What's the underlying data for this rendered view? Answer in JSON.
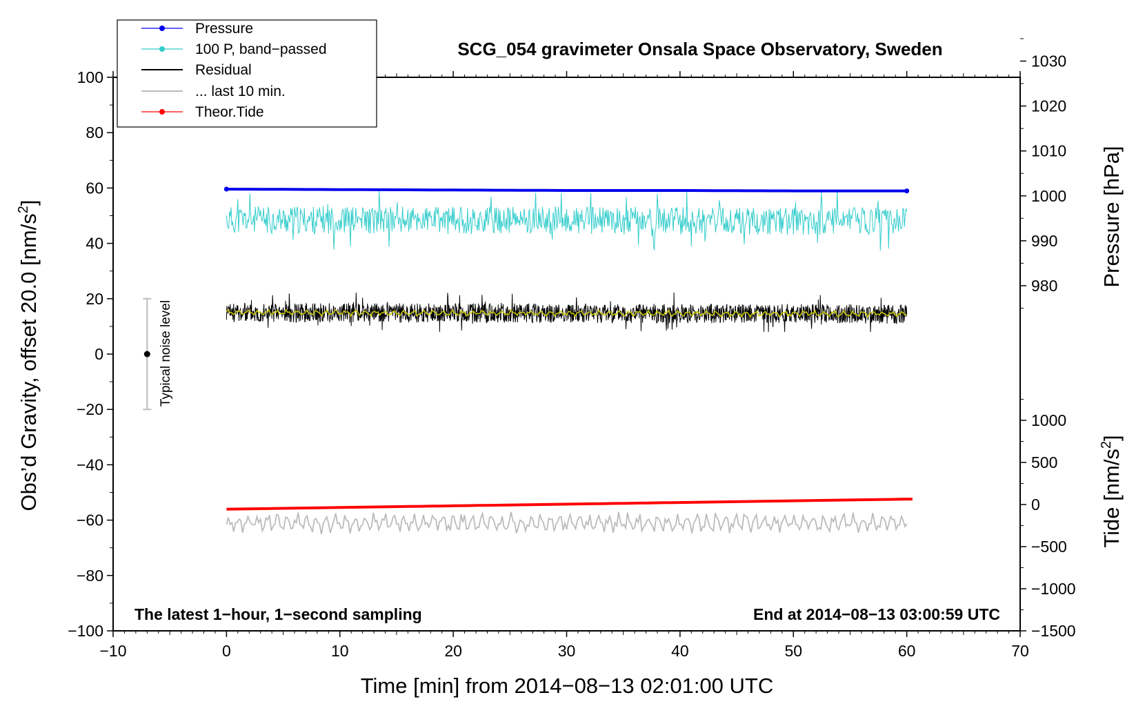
{
  "chart_data": {
    "type": "line",
    "title": "SCG_054 gravimeter Onsala Space Observatory, Sweden",
    "xlabel": "Time [min] from 2014−08−13 02:01:00 UTC",
    "ylabel": "Obs’d Gravity, offset 20.0 [nm/s²]",
    "ylabel_main": "Obs’d Gravity, offset 20.0 [nm/s",
    "ylabel_sup": "2",
    "ylabel_end": "]",
    "y2label": "Pressure [hPa]",
    "y3label": "Tide [nm/s²]",
    "y3label_main": "Tide [nm/s",
    "y3label_sup": "2",
    "y3label_end": "]",
    "xlim": [
      -10,
      70
    ],
    "ylim": [
      -100,
      100
    ],
    "pressure_lim": [
      970,
      1035
    ],
    "tide_lim": [
      -1500,
      1500
    ],
    "x_ticks": [
      -10,
      0,
      10,
      20,
      30,
      40,
      50,
      60,
      70
    ],
    "x_tick_labels": [
      "−10",
      "0",
      "10",
      "20",
      "30",
      "40",
      "50",
      "60",
      "70"
    ],
    "y_ticks": [
      -100,
      -80,
      -60,
      -40,
      -20,
      0,
      20,
      40,
      60,
      80,
      100
    ],
    "y_tick_labels": [
      "−100",
      "−80",
      "−60",
      "−40",
      "−20",
      "0",
      "20",
      "40",
      "60",
      "80",
      "100"
    ],
    "pressure_ticks": [
      980,
      990,
      1000,
      1010,
      1020,
      1030
    ],
    "pressure_tick_labels": [
      "980",
      "990",
      "1000",
      "1010",
      "1020",
      "1030"
    ],
    "tide_ticks": [
      -1500,
      -1000,
      -500,
      0,
      500,
      1000
    ],
    "tide_tick_labels": [
      "−1500",
      "−1000",
      "−500",
      "0",
      "500",
      "1000"
    ],
    "legend": {
      "position": "top-left",
      "entries": [
        "Pressure",
        "100 P, band−passed",
        "Residual",
        "... last 10 min.",
        "Theor.Tide"
      ]
    },
    "annotations": {
      "bottom_left": "The latest 1−hour, 1−second sampling",
      "bottom_right": "End at 2014−08−13 03:00:59 UTC",
      "noise_label": "Typical noise level"
    },
    "noise_bar": {
      "x": -7,
      "center": 0,
      "low": -20,
      "high": 20
    },
    "series": [
      {
        "name": "Pressure",
        "axis": "pressure",
        "color": "#0000ee",
        "x": [
          0,
          10,
          20,
          30,
          40,
          50,
          60
        ],
        "values": [
          1001.5,
          1001.4,
          1001.3,
          1001.2,
          1001.2,
          1001.1,
          1001.1
        ]
      },
      {
        "name": "100 P, band−passed",
        "axis": "gravity",
        "color": "#33cccc",
        "x": [
          0,
          60
        ],
        "values": [
          48.5,
          48.0
        ],
        "noise_amplitude": 5,
        "range": [
          36,
          61
        ]
      },
      {
        "name": "Residual",
        "axis": "gravity",
        "color": "#000000",
        "x": [
          0,
          60
        ],
        "values": [
          15.0,
          14.5
        ],
        "noise_amplitude": 3.5,
        "range": [
          8,
          25
        ]
      },
      {
        "name": "Residual (smoothed)",
        "axis": "gravity",
        "color": "#cccc00",
        "x": [
          0,
          60
        ],
        "values": [
          15.0,
          14.5
        ]
      },
      {
        "name": "... last 10 min.",
        "axis": "gravity",
        "color": "#bbbbbb",
        "x": [
          0,
          60
        ],
        "values": [
          -61,
          -61
        ],
        "noise_amplitude": 4,
        "range": [
          -69,
          -54
        ]
      },
      {
        "name": "Theor.Tide",
        "axis": "tide",
        "color": "#ff0000",
        "x": [
          0,
          60.5
        ],
        "values": [
          -55,
          65
        ]
      }
    ],
    "colors": {
      "pressure": "#0000ee",
      "band_passed": "#33cccc",
      "residual": "#000000",
      "smoothed": "#cccc00",
      "last10": "#bbbbbb",
      "tide": "#ff0000",
      "noise_bar": "#bbbbbb"
    }
  }
}
